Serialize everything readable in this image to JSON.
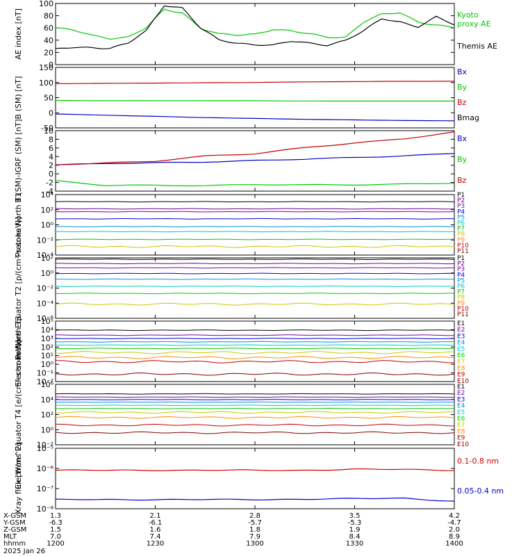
{
  "chart_data": [
    {
      "type": "line",
      "ylabel": "AE index [nT]",
      "yticks": [
        "100",
        "80",
        "60",
        "40",
        "20",
        "0"
      ],
      "ylim": [
        0,
        100
      ],
      "x": [
        "1200",
        "1206",
        "1212",
        "1218",
        "1224",
        "1227",
        "1230",
        "1233",
        "1236",
        "1242",
        "1248",
        "1254",
        "1300",
        "1306",
        "1312",
        "1318",
        "1324",
        "1330",
        "1336",
        "1342",
        "1348",
        "1354",
        "1400"
      ],
      "series": [
        {
          "name": "Kyoto proxy AE",
          "color": "#00c800",
          "values": [
            60,
            56,
            48,
            43,
            45,
            60,
            90,
            85,
            60,
            50,
            48,
            50,
            58,
            55,
            50,
            45,
            45,
            70,
            82,
            85,
            70,
            65,
            60
          ]
        },
        {
          "name": "Themis AE",
          "color": "#000000",
          "values": [
            25,
            28,
            28,
            27,
            35,
            55,
            97,
            93,
            60,
            40,
            35,
            33,
            32,
            38,
            35,
            32,
            40,
            55,
            75,
            70,
            62,
            78,
            65
          ]
        }
      ]
    },
    {
      "type": "line",
      "ylabel": "B (SM) [nT]",
      "yticks": [
        "150",
        "100",
        "50",
        "0",
        "-50"
      ],
      "ylim": [
        -55,
        150
      ],
      "series": [
        {
          "name": "Bx",
          "color": "#0000c0",
          "values": [
            -8,
            -12,
            -16,
            -20,
            -23,
            -26,
            -28,
            -30,
            -31
          ]
        },
        {
          "name": "By",
          "color": "#00c800",
          "values": [
            38,
            37,
            37,
            37,
            37,
            36,
            36,
            36,
            36
          ]
        },
        {
          "name": "Bz",
          "color": "#c00000",
          "values": [
            95,
            96,
            97,
            98,
            99,
            101,
            102,
            103,
            103
          ]
        },
        {
          "name": "Bmag",
          "color": "#000000",
          "values": []
        }
      ]
    },
    {
      "type": "line",
      "ylabel": "B (SM)-IGRF (SM) [nT]",
      "yticks": [
        "10",
        "8",
        "6",
        "4",
        "2",
        "0",
        "-2",
        "-4"
      ],
      "ylim": [
        -5,
        10
      ],
      "series": [
        {
          "name": "Bx",
          "color": "#0000c0",
          "values": [
            1.5,
            1.8,
            2.0,
            2.3,
            2.6,
            2.9,
            3.3,
            3.8,
            4.4
          ]
        },
        {
          "name": "By",
          "color": "#00c800",
          "values": [
            -2.5,
            -3.6,
            -3.5,
            -3.6,
            -3.4,
            -3.5,
            -3.4,
            -3.2,
            -3.0
          ]
        },
        {
          "name": "Bz",
          "color": "#c00000",
          "values": [
            1.5,
            2.0,
            2.5,
            3.7,
            4.2,
            5.8,
            7.0,
            8.0,
            9.6
          ]
        }
      ]
    },
    {
      "type": "line",
      "ylabel": "Protons North T1",
      "yticks": [
        "10⁴",
        "10²",
        "10⁰",
        "10⁻²",
        "10⁻⁴"
      ],
      "ylim": [
        -4.5,
        4
      ],
      "series": [
        {
          "name": "P1",
          "color": "#000000",
          "log10": 3.0
        },
        {
          "name": "P2",
          "color": "#6a0090",
          "log10": 2.0
        },
        {
          "name": "P3",
          "color": "#7800b0",
          "log10": 1.6
        },
        {
          "name": "P4",
          "color": "#0000d0",
          "log10": 0.6
        },
        {
          "name": "P5",
          "color": "#0090e0",
          "log10": -0.5
        },
        {
          "name": "P6",
          "color": "#00c8c8",
          "log10": -1.2
        },
        {
          "name": "P7",
          "color": "#00c800",
          "log10": -2.3
        },
        {
          "name": "P8",
          "color": "#c8c800",
          "log10": -3.3
        },
        {
          "name": "P9",
          "color": "#ff8c00",
          "log10": null
        },
        {
          "name": "P10",
          "color": "#c00000",
          "log10": null
        },
        {
          "name": "P11",
          "color": "#800000",
          "log10": null
        }
      ]
    },
    {
      "type": "line",
      "ylabel": "Protons Equator T2 [p/(cm²-s-sr-keV)]",
      "yticks": [
        "10²",
        "10⁰",
        "10⁻²",
        "10⁻⁴",
        "10⁻⁶"
      ],
      "ylim": [
        -6.5,
        2
      ],
      "series": [
        {
          "name": "P1",
          "color": "#000000",
          "log10": 1.8
        },
        {
          "name": "P2",
          "color": "#6a0090",
          "log10": 1.2
        },
        {
          "name": "P3",
          "color": "#7800b0",
          "log10": 0.6
        },
        {
          "name": "P4",
          "color": "#0000d0",
          "log10": -0.2
        },
        {
          "name": "P5",
          "color": "#0090e0",
          "log10": -1.0
        },
        {
          "name": "P6",
          "color": "#00c8c8",
          "log10": -2.0
        },
        {
          "name": "P7",
          "color": "#00c800",
          "log10": -3.0
        },
        {
          "name": "P8",
          "color": "#c8c800",
          "log10": -4.5
        },
        {
          "name": "P9",
          "color": "#ff8c00",
          "log10": null
        },
        {
          "name": "P10",
          "color": "#c00000",
          "log10": null
        },
        {
          "name": "P11",
          "color": "#800000",
          "log10": null
        }
      ]
    },
    {
      "type": "line",
      "ylabel": "Electrons North T3",
      "yticks": [
        "10⁵",
        "10⁴",
        "10³",
        "10²",
        "10¹",
        "10⁰",
        "10⁻¹",
        "10⁻²"
      ],
      "ylim": [
        -2.3,
        5
      ],
      "series": [
        {
          "name": "E1",
          "color": "#000000",
          "log10": 3.9
        },
        {
          "name": "E2",
          "color": "#7800b0",
          "log10": 3.3
        },
        {
          "name": "E3",
          "color": "#0000d0",
          "log10": 2.9
        },
        {
          "name": "E4",
          "color": "#0090e0",
          "log10": 2.5
        },
        {
          "name": "E5",
          "color": "#00c8c8",
          "log10": 2.1
        },
        {
          "name": "E6",
          "color": "#00c800",
          "log10": 1.7
        },
        {
          "name": "E7",
          "color": "#c8c800",
          "log10": 1.2
        },
        {
          "name": "E8",
          "color": "#ff8c00",
          "log10": 0.6
        },
        {
          "name": "E9",
          "color": "#c00000",
          "log10": 0.1
        },
        {
          "name": "E10",
          "color": "#800000",
          "log10": -1.4
        }
      ]
    },
    {
      "type": "line",
      "ylabel": "Electrons Equator T4 [e/(cm²-s-sr-keV)]",
      "yticks": [
        "10⁶",
        "10⁴",
        "10²",
        "10⁰",
        "10⁻²"
      ],
      "ylim": [
        -3.5,
        6
      ],
      "series": [
        {
          "name": "E1",
          "color": "#000000",
          "log10": 4.5
        },
        {
          "name": "E2",
          "color": "#7800b0",
          "log10": 4.0
        },
        {
          "name": "E3",
          "color": "#0000d0",
          "log10": 3.6
        },
        {
          "name": "E4",
          "color": "#0090e0",
          "log10": 3.2
        },
        {
          "name": "E5",
          "color": "#00c8c8",
          "log10": 2.7
        },
        {
          "name": "E6",
          "color": "#00c800",
          "log10": 2.2
        },
        {
          "name": "E7",
          "color": "#c8c800",
          "log10": 1.6
        },
        {
          "name": "E8",
          "color": "#ff8c00",
          "log10": 0.8
        },
        {
          "name": "E9",
          "color": "#c00000",
          "log10": -0.4
        },
        {
          "name": "E10",
          "color": "#800000",
          "log10": -1.6
        }
      ]
    },
    {
      "type": "line",
      "ylabel": "Xray flux [W/m^2]",
      "yticks": [
        "10⁻⁵",
        "10⁻⁶",
        "10⁻⁷",
        "10⁻⁸"
      ],
      "ylim": [
        -8.3,
        -5
      ],
      "series": [
        {
          "name": "0.1-0.8 nm",
          "color": "#d00000",
          "log10": [
            -6.2,
            -6.2,
            -6.2,
            -6.2,
            -6.2,
            -6.2,
            -6.15,
            -6.15,
            -6.2
          ]
        },
        {
          "name": "0.05-0.4 nm",
          "color": "#0000d0",
          "log10": [
            -7.8,
            -7.8,
            -7.8,
            -7.8,
            -7.8,
            -7.78,
            -7.75,
            -7.72,
            -7.9
          ]
        }
      ]
    }
  ],
  "orbit_table": {
    "rows": [
      {
        "label": "X-GSM",
        "values": [
          "1.3",
          "2.1",
          "2.8",
          "3.5",
          "4.2"
        ]
      },
      {
        "label": "Y-GSM",
        "values": [
          "-6.3",
          "-6.1",
          "-5.7",
          "-5.3",
          "-4.7"
        ]
      },
      {
        "label": "Z-GSM",
        "values": [
          "1.5",
          "1.6",
          "1.8",
          "1.9",
          "2.0"
        ]
      },
      {
        "label": "MLT",
        "values": [
          "7.0",
          "7.4",
          "7.9",
          "8.4",
          "8.9"
        ]
      },
      {
        "label": "hhmm",
        "values": [
          "1200",
          "1230",
          "1300",
          "1330",
          "1400"
        ]
      }
    ],
    "date": "2025 Jan 26"
  }
}
